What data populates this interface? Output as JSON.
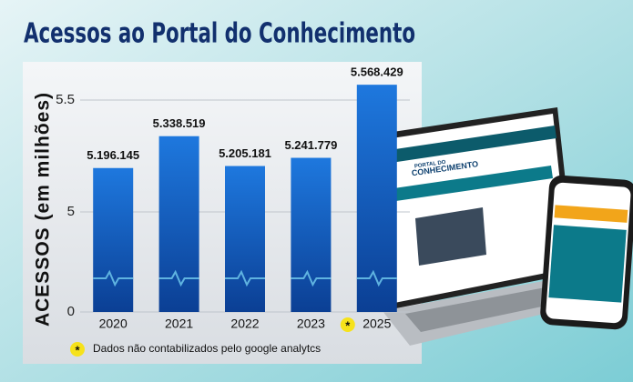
{
  "chart_data": {
    "type": "bar",
    "title": "Acessos ao Portal do Conhecimento",
    "y_label": "ACESSOS (em milhões)",
    "categories": [
      "2020",
      "2021",
      "2022",
      "2023",
      "2025"
    ],
    "values": [
      5.196145,
      5.338519,
      5.205181,
      5.241779,
      5.568429
    ],
    "value_labels": [
      "5.196.145",
      "5.338.519",
      "5.205.181",
      "5.241.779",
      "5.568.429"
    ],
    "color": "#1565c8",
    "ylim": [
      0,
      5.6
    ],
    "yticks": [
      0,
      5,
      5.5
    ],
    "grid": true,
    "axis_break": true,
    "footnote": {
      "marker": "*",
      "text": "Dados não contabilizados pelo google analytcs"
    },
    "starred_category": 4,
    "devices": {
      "logo_top": "PORTAL DO",
      "logo_bottom": "CONHECIMENTO"
    }
  }
}
